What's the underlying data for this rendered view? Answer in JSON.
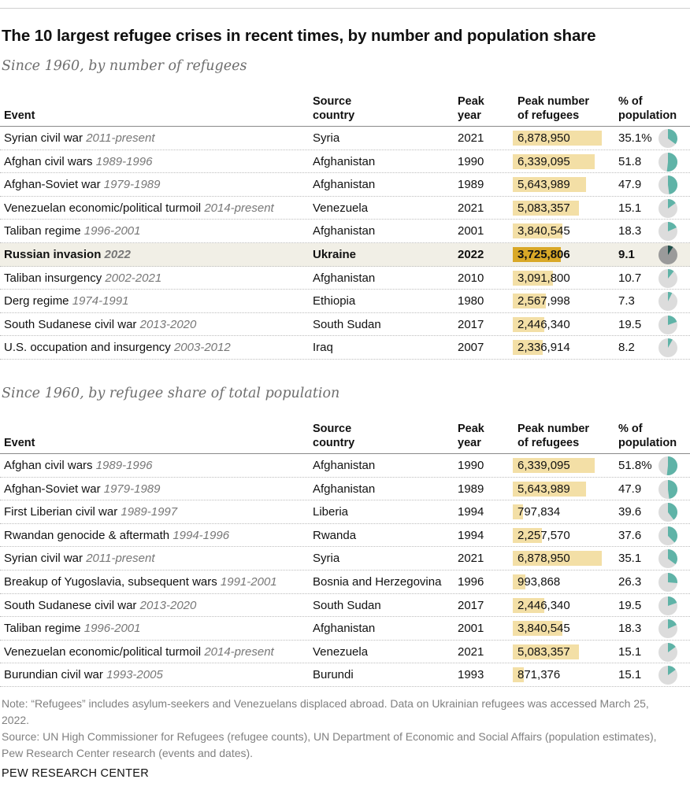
{
  "title": "The 10 largest refugee crises in recent times, by number and population share",
  "headers": {
    "event": "Event",
    "source_country": [
      "Source",
      "country"
    ],
    "peak_year": [
      "Peak",
      "year"
    ],
    "peak_number": [
      "Peak number",
      "of refugees"
    ],
    "pct_population": [
      "% of",
      "population"
    ]
  },
  "colors": {
    "bar": "#f3dfa6",
    "bar_highlight": "#d9a827",
    "pie_fill": "#5fb3a7",
    "pie_fill_highlight": "#1f4e49",
    "pie_bg": "#dcdcdc",
    "pie_bg_highlight": "#9a9a9a",
    "highlight_row": "#f1efe6"
  },
  "chart_data": [
    {
      "type": "table",
      "subtitle": "Since 1960, by number of refugees",
      "max_refugees": 6878950,
      "rows": [
        {
          "event": "Syrian civil war",
          "years": "2011-present",
          "country": "Syria",
          "peak_year": "2021",
          "refugees": 6878950,
          "refugees_label": "6,878,950",
          "pct": 35.1,
          "pct_label": "35.1%"
        },
        {
          "event": "Afghan civil wars",
          "years": "1989-1996",
          "country": "Afghanistan",
          "peak_year": "1990",
          "refugees": 6339095,
          "refugees_label": "6,339,095",
          "pct": 51.8,
          "pct_label": "51.8"
        },
        {
          "event": "Afghan-Soviet war",
          "years": "1979-1989",
          "country": "Afghanistan",
          "peak_year": "1989",
          "refugees": 5643989,
          "refugees_label": "5,643,989",
          "pct": 47.9,
          "pct_label": "47.9"
        },
        {
          "event": "Venezuelan economic/political turmoil",
          "years": "2014-present",
          "country": "Venezuela",
          "peak_year": "2021",
          "refugees": 5083357,
          "refugees_label": "5,083,357",
          "pct": 15.1,
          "pct_label": "15.1"
        },
        {
          "event": "Taliban regime",
          "years": "1996-2001",
          "country": "Afghanistan",
          "peak_year": "2001",
          "refugees": 3840545,
          "refugees_label": "3,840,545",
          "pct": 18.3,
          "pct_label": "18.3"
        },
        {
          "event": "Russian invasion",
          "years": "2022",
          "country": "Ukraine",
          "peak_year": "2022",
          "refugees": 3725806,
          "refugees_label": "3,725,806",
          "pct": 9.1,
          "pct_label": "9.1",
          "highlight": true
        },
        {
          "event": "Taliban insurgency",
          "years": "2002-2021",
          "country": "Afghanistan",
          "peak_year": "2010",
          "refugees": 3091800,
          "refugees_label": "3,091,800",
          "pct": 10.7,
          "pct_label": "10.7"
        },
        {
          "event": "Derg regime",
          "years": "1974-1991",
          "country": "Ethiopia",
          "peak_year": "1980",
          "refugees": 2567998,
          "refugees_label": "2,567,998",
          "pct": 7.3,
          "pct_label": "7.3"
        },
        {
          "event": "South Sudanese civil war",
          "years": "2013-2020",
          "country": "South Sudan",
          "peak_year": "2017",
          "refugees": 2446340,
          "refugees_label": "2,446,340",
          "pct": 19.5,
          "pct_label": "19.5"
        },
        {
          "event": "U.S. occupation and insurgency",
          "years": "2003-2012",
          "country": "Iraq",
          "peak_year": "2007",
          "refugees": 2336914,
          "refugees_label": "2,336,914",
          "pct": 8.2,
          "pct_label": "8.2"
        }
      ]
    },
    {
      "type": "table",
      "subtitle": "Since 1960, by refugee share of total population",
      "max_refugees": 6878950,
      "rows": [
        {
          "event": "Afghan civil wars",
          "years": "1989-1996",
          "country": "Afghanistan",
          "peak_year": "1990",
          "refugees": 6339095,
          "refugees_label": "6,339,095",
          "pct": 51.8,
          "pct_label": "51.8%"
        },
        {
          "event": "Afghan-Soviet war",
          "years": "1979-1989",
          "country": "Afghanistan",
          "peak_year": "1989",
          "refugees": 5643989,
          "refugees_label": "5,643,989",
          "pct": 47.9,
          "pct_label": "47.9"
        },
        {
          "event": "First Liberian civil war",
          "years": "1989-1997",
          "country": "Liberia",
          "peak_year": "1994",
          "refugees": 797834,
          "refugees_label": "797,834",
          "pct": 39.6,
          "pct_label": "39.6"
        },
        {
          "event": "Rwandan genocide & aftermath",
          "years": "1994-1996",
          "country": "Rwanda",
          "peak_year": "1994",
          "refugees": 2257570,
          "refugees_label": "2,257,570",
          "pct": 37.6,
          "pct_label": "37.6"
        },
        {
          "event": "Syrian civil war",
          "years": "2011-present",
          "country": "Syria",
          "peak_year": "2021",
          "refugees": 6878950,
          "refugees_label": "6,878,950",
          "pct": 35.1,
          "pct_label": "35.1"
        },
        {
          "event": "Breakup of Yugoslavia, subsequent wars",
          "years": "1991-2001",
          "country": "Bosnia and Herzegovina",
          "peak_year": "1996",
          "refugees": 993868,
          "refugees_label": "993,868",
          "pct": 26.3,
          "pct_label": "26.3"
        },
        {
          "event": "South Sudanese civil war",
          "years": "2013-2020",
          "country": "South Sudan",
          "peak_year": "2017",
          "refugees": 2446340,
          "refugees_label": "2,446,340",
          "pct": 19.5,
          "pct_label": "19.5"
        },
        {
          "event": "Taliban regime",
          "years": "1996-2001",
          "country": "Afghanistan",
          "peak_year": "2001",
          "refugees": 3840545,
          "refugees_label": "3,840,545",
          "pct": 18.3,
          "pct_label": "18.3"
        },
        {
          "event": "Venezuelan economic/political turmoil",
          "years": "2014-present",
          "country": "Venezuela",
          "peak_year": "2021",
          "refugees": 5083357,
          "refugees_label": "5,083,357",
          "pct": 15.1,
          "pct_label": "15.1"
        },
        {
          "event": "Burundian civil war",
          "years": "1993-2005",
          "country": "Burundi",
          "peak_year": "1993",
          "refugees": 871376,
          "refugees_label": "871,376",
          "pct": 15.1,
          "pct_label": "15.1"
        }
      ]
    }
  ],
  "note": "Note: “Refugees” includes asylum-seekers and Venezuelans displaced abroad. Data on Ukrainian refugees was accessed March 25, 2022.",
  "source": "Source: UN High Commissioner for Refugees (refugee counts), UN Department of Economic and Social Affairs (population estimates), Pew Research Center research (events and dates).",
  "brand": "PEW RESEARCH CENTER"
}
